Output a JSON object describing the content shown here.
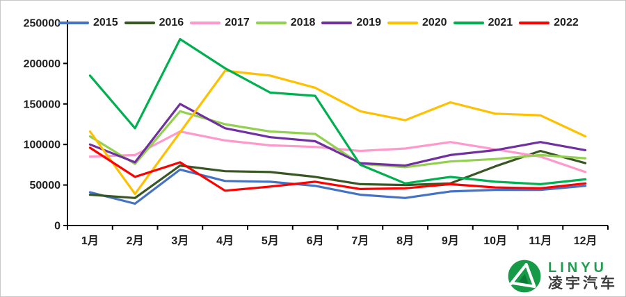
{
  "chart_data": {
    "type": "line",
    "title": "",
    "xlabel": "",
    "ylabel": "",
    "categories": [
      "1月",
      "2月",
      "3月",
      "4月",
      "5月",
      "6月",
      "7月",
      "8月",
      "9月",
      "10月",
      "11月",
      "12月"
    ],
    "series": [
      {
        "name": "2015",
        "color": "#4472C4",
        "values": [
          41000,
          27000,
          69000,
          55000,
          54000,
          49000,
          38000,
          34000,
          42000,
          44000,
          44000,
          49000
        ]
      },
      {
        "name": "2016",
        "color": "#385723",
        "values": [
          38000,
          34000,
          74000,
          67000,
          66000,
          60000,
          51000,
          50000,
          52000,
          73000,
          92000,
          77000
        ]
      },
      {
        "name": "2017",
        "color": "#FF99CC",
        "values": [
          85000,
          87000,
          116000,
          105000,
          99000,
          97000,
          92000,
          95000,
          103000,
          94000,
          85000,
          66000
        ]
      },
      {
        "name": "2018",
        "color": "#92D050",
        "values": [
          110000,
          76000,
          141000,
          125000,
          116000,
          113000,
          76000,
          72000,
          79000,
          82000,
          87000,
          83000
        ]
      },
      {
        "name": "2019",
        "color": "#7030A0",
        "values": [
          100000,
          78000,
          150000,
          120000,
          109000,
          104000,
          77000,
          74000,
          87000,
          93000,
          103000,
          93000
        ]
      },
      {
        "name": "2020",
        "color": "#FFC000",
        "values": [
          116000,
          39000,
          115000,
          191000,
          185000,
          170000,
          141000,
          130000,
          152000,
          138000,
          136000,
          110000
        ]
      },
      {
        "name": "2021",
        "color": "#00B050",
        "values": [
          185000,
          120000,
          230000,
          194000,
          164000,
          160000,
          75000,
          52000,
          60000,
          54000,
          51000,
          57000
        ]
      },
      {
        "name": "2022",
        "color": "#FF0000",
        "values": [
          96000,
          60000,
          78000,
          43000,
          48000,
          54000,
          45000,
          46000,
          51000,
          47000,
          46000,
          52000
        ]
      }
    ],
    "ylim": [
      0,
      250000
    ],
    "ytick_step": 50000,
    "yticks": [
      "0",
      "50000",
      "100000",
      "150000",
      "200000",
      "250000"
    ],
    "legend_position": "top",
    "grid": false,
    "axis_color": "#000000",
    "label_color": "#1f1f1f"
  },
  "logo": {
    "brand_en": "LINYU",
    "brand_cn": "凌宇汽车",
    "emblem_icon": "linyu-emblem-icon",
    "green": "#1E9E4E",
    "dark": "#3D3D3D"
  }
}
